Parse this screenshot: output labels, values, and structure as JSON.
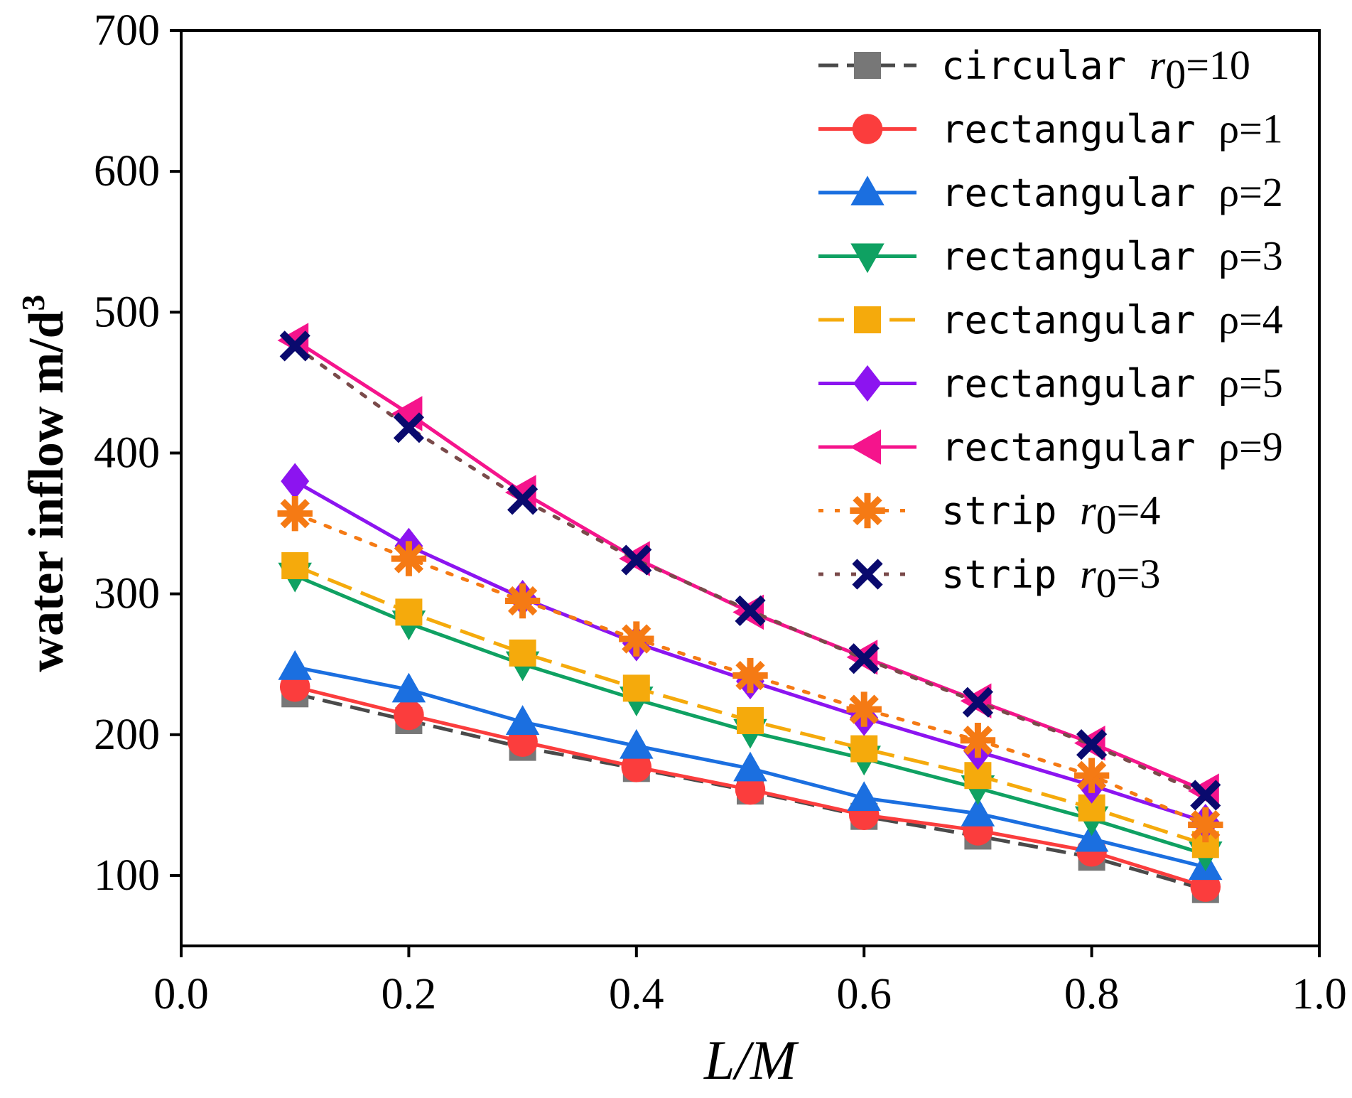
{
  "chart_data": {
    "type": "line",
    "title": "",
    "xlabel": "L/M",
    "ylabel": "water inflow m/d³",
    "ylabel_parts": {
      "main": "water inflow m/d",
      "sup": "3"
    },
    "xlim": [
      0.0,
      1.0
    ],
    "ylim": [
      50,
      700
    ],
    "xticks": [
      "0.0",
      "0.2",
      "0.4",
      "0.6",
      "0.8",
      "1.0"
    ],
    "yticks": [
      "100",
      "200",
      "300",
      "400",
      "500",
      "600",
      "700"
    ],
    "grid": false,
    "legend_position": "top-right",
    "x": [
      0.1,
      0.2,
      0.3,
      0.4,
      0.5,
      0.6,
      0.7,
      0.8,
      0.9
    ],
    "series": [
      {
        "name": "circular r0=10",
        "label_parts": {
          "text": "circular ",
          "var": "r",
          "sub": "0",
          "rest": "=10"
        },
        "color": "#777777",
        "line_color": "#4a4a4a",
        "dash": "dash",
        "marker": "square",
        "values": [
          229,
          210,
          191,
          176,
          160,
          142,
          128,
          113,
          90
        ]
      },
      {
        "name": "rectangular ρ=1",
        "label_parts": {
          "text": "rectangular ",
          "var": "",
          "sub": "",
          "rest": "ρ=1"
        },
        "color": "#fb3d3d",
        "line_color": "#fb3d3d",
        "dash": "solid",
        "marker": "circle",
        "values": [
          234,
          214,
          195,
          177,
          161,
          143,
          132,
          117,
          92
        ]
      },
      {
        "name": "rectangular ρ=2",
        "label_parts": {
          "text": "rectangular ",
          "var": "",
          "sub": "",
          "rest": "ρ=2"
        },
        "color": "#1b6fe0",
        "line_color": "#1b6fe0",
        "dash": "solid",
        "marker": "triangle-up",
        "values": [
          248,
          232,
          209,
          192,
          176,
          155,
          144,
          126,
          106
        ]
      },
      {
        "name": "rectangular ρ=3",
        "label_parts": {
          "text": "rectangular ",
          "var": "",
          "sub": "",
          "rest": "ρ=3"
        },
        "color": "#0fa162",
        "line_color": "#0fa162",
        "dash": "solid",
        "marker": "triangle-down",
        "values": [
          313,
          279,
          250,
          225,
          202,
          183,
          162,
          140,
          115
        ]
      },
      {
        "name": "rectangular ρ=4",
        "label_parts": {
          "text": "rectangular ",
          "var": "",
          "sub": "",
          "rest": "ρ=4"
        },
        "color": "#f5aa0c",
        "line_color": "#f5aa0c",
        "dash": "dashlong",
        "marker": "square",
        "values": [
          320,
          287,
          258,
          233,
          210,
          190,
          171,
          148,
          122
        ]
      },
      {
        "name": "rectangular ρ=5",
        "label_parts": {
          "text": "rectangular ",
          "var": "",
          "sub": "",
          "rest": "ρ=5"
        },
        "color": "#8c14f0",
        "line_color": "#8c14f0",
        "dash": "solid",
        "marker": "diamond",
        "values": [
          380,
          334,
          297,
          265,
          238,
          212,
          188,
          164,
          138
        ]
      },
      {
        "name": "rectangular ρ=9",
        "label_parts": {
          "text": "rectangular ",
          "var": "",
          "sub": "",
          "rest": "ρ=9"
        },
        "color": "#f5148c",
        "line_color": "#f5148c",
        "dash": "solid",
        "marker": "triangle-left",
        "values": [
          480,
          428,
          372,
          325,
          287,
          255,
          224,
          194,
          160
        ]
      },
      {
        "name": "strip r0=4",
        "label_parts": {
          "text": "strip ",
          "var": "r",
          "sub": "0",
          "rest": "=4"
        },
        "color": "#f57a14",
        "line_color": "#f57a14",
        "dash": "dot",
        "marker": "asterisk",
        "values": [
          357,
          325,
          295,
          268,
          242,
          218,
          196,
          171,
          136
        ]
      },
      {
        "name": "strip r0=3",
        "label_parts": {
          "text": "strip ",
          "var": "r",
          "sub": "0",
          "rest": "=3"
        },
        "color": "#0a0a6e",
        "line_color": "#7a4a4a",
        "dash": "dot",
        "marker": "x",
        "values": [
          476,
          418,
          367,
          324,
          288,
          254,
          223,
          193,
          157
        ]
      }
    ]
  }
}
